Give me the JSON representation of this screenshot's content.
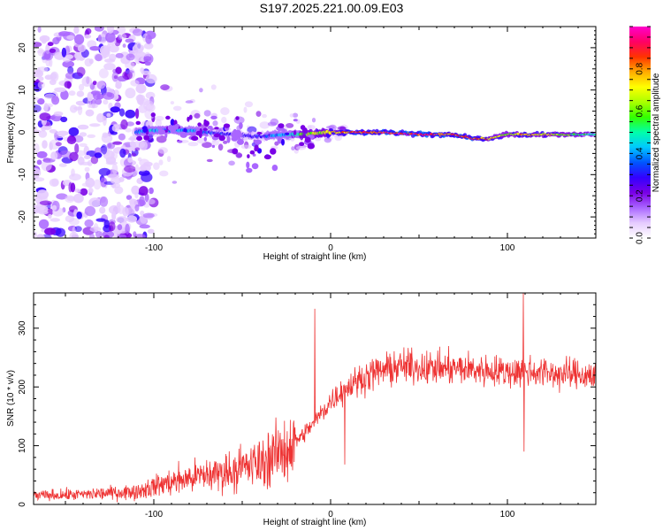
{
  "figure_title": "S197.2025.221.00.09.E03",
  "chart_data": [
    {
      "type": "heatmap",
      "name": "spectrogram",
      "xlabel": "Height of straight line (km)",
      "ylabel": "Frequency (Hz)",
      "xlim": [
        -168,
        150
      ],
      "ylim": [
        -25,
        25
      ],
      "xticks": [
        -100,
        0,
        100
      ],
      "yticks": [
        -20,
        -10,
        0,
        10,
        20
      ],
      "colorbar": {
        "label": "Normalized spectral amplitude",
        "range": [
          0,
          1
        ],
        "ticks": [
          0,
          0.2,
          0.4,
          0.6,
          0.8
        ],
        "colors": [
          "#ffffff",
          "#e6ccff",
          "#aa66ff",
          "#7a00e6",
          "#3300ff",
          "#0055ff",
          "#00c8ff",
          "#00ffaa",
          "#33ff00",
          "#aaff00",
          "#ffff00",
          "#ffaa00",
          "#ff3300",
          "#ff0066",
          "#ff00cc"
        ]
      },
      "ridge": {
        "x": [
          -110,
          -100,
          -80,
          -60,
          -40,
          -25,
          -15,
          0,
          15,
          30,
          50,
          70,
          80,
          90,
          100,
          110,
          130,
          150
        ],
        "frequency": [
          0,
          0.5,
          0.5,
          -0.5,
          -1,
          -0.5,
          -0.5,
          0,
          0,
          0,
          -0.5,
          -0.5,
          -1.5,
          -1.5,
          -0.5,
          -0.5,
          -0.5,
          -0.5
        ],
        "amplitude": [
          0.35,
          0.45,
          0.4,
          0.3,
          0.3,
          0.45,
          0.6,
          0.75,
          0.9,
          0.9,
          0.95,
          0.85,
          0.9,
          0.8,
          0.6,
          0.8,
          0.65,
          0.5
        ]
      },
      "noise_region_x": [
        -168,
        -100
      ]
    },
    {
      "type": "line",
      "name": "snr",
      "xlabel": "Height of straight line (km)",
      "ylabel": "SNR (10 * v/v)",
      "xlim": [
        -168,
        150
      ],
      "ylim": [
        0,
        360
      ],
      "xticks": [
        -100,
        0,
        100
      ],
      "yticks": [
        0,
        100,
        200,
        300
      ],
      "color": "#ee3333",
      "trend": {
        "x": [
          -168,
          -140,
          -110,
          -95,
          -80,
          -60,
          -40,
          -25,
          -15,
          -8,
          0,
          5,
          10,
          15,
          25,
          40,
          60,
          80,
          100,
          110,
          130,
          150
        ],
        "y": [
          15,
          17,
          22,
          35,
          45,
          55,
          70,
          95,
          120,
          145,
          175,
          190,
          200,
          210,
          225,
          235,
          232,
          230,
          225,
          228,
          222,
          220
        ]
      },
      "spikes": [
        {
          "x": -9,
          "y": 333
        },
        {
          "x": 8,
          "y": 68
        },
        {
          "x": 109,
          "y": 360
        },
        {
          "x": 109.5,
          "y": 90
        }
      ]
    }
  ]
}
